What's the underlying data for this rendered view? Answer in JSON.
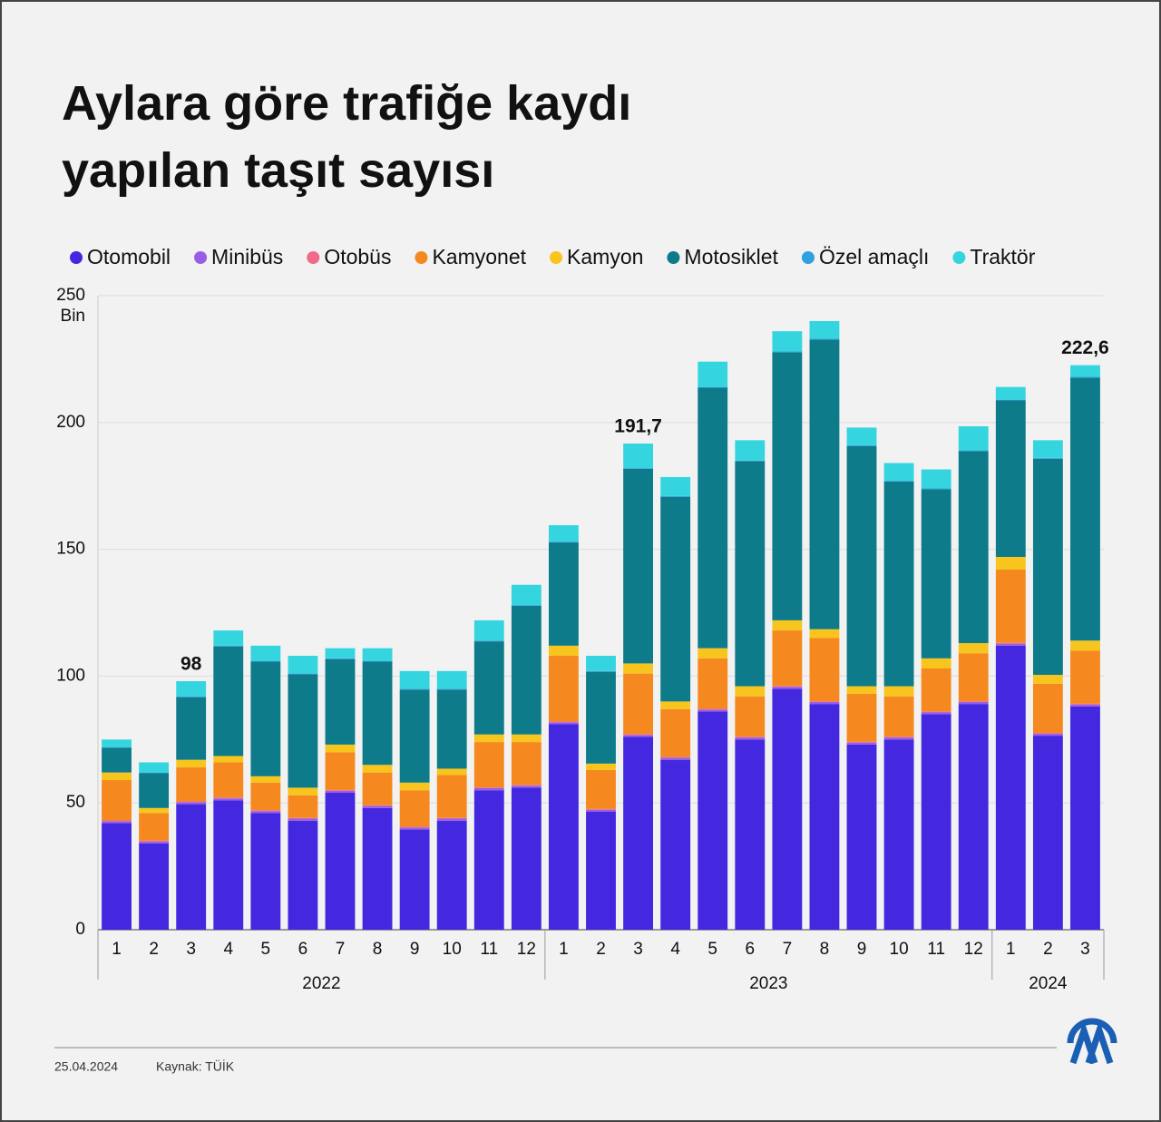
{
  "chart_data": {
    "type": "stacked_bar",
    "title_lines": [
      "Aylara göre trafiğe kaydı",
      "yapılan taşıt sayısı"
    ],
    "y_unit": "Bin",
    "groups": [
      {
        "label": "2022",
        "categories": [
          "1",
          "2",
          "3",
          "4",
          "5",
          "6",
          "7",
          "8",
          "9",
          "10",
          "11",
          "12"
        ]
      },
      {
        "label": "2023",
        "categories": [
          "1",
          "2",
          "3",
          "4",
          "5",
          "6",
          "7",
          "8",
          "9",
          "10",
          "11",
          "12"
        ]
      },
      {
        "label": "2024",
        "categories": [
          "1",
          "2",
          "3"
        ]
      }
    ],
    "series": [
      {
        "name": "Otomobil",
        "color": "#4328e0",
        "values": [
          42,
          34,
          49.5,
          51,
          46,
          43,
          54,
          48,
          39.5,
          43,
          55,
          56,
          81,
          46.5,
          76,
          67,
          86,
          75,
          95,
          89,
          73,
          75,
          85,
          89,
          112,
          76.5,
          88
        ]
      },
      {
        "name": "Minibüs",
        "color": "#9b5de5",
        "values": [
          0.8,
          0.8,
          0.8,
          0.8,
          0.8,
          0.8,
          0.8,
          0.8,
          0.8,
          0.8,
          0.8,
          0.8,
          0.8,
          0.8,
          0.8,
          0.8,
          0.8,
          0.8,
          0.8,
          0.8,
          0.8,
          0.8,
          0.8,
          0.8,
          0.8,
          0.8,
          0.8
        ]
      },
      {
        "name": "Otobüs",
        "color": "#f06a8a",
        "values": [
          0.3,
          0.3,
          0.3,
          0.3,
          0.3,
          0.3,
          0.3,
          0.3,
          0.3,
          0.3,
          0.3,
          0.3,
          0.3,
          0.3,
          0.3,
          0.3,
          0.3,
          0.3,
          0.3,
          0.3,
          0.3,
          0.3,
          0.3,
          0.3,
          0.3,
          0.3,
          0.3
        ]
      },
      {
        "name": "Kamyonet",
        "color": "#f5891f",
        "values": [
          15.9,
          10.9,
          13.4,
          13.9,
          10.9,
          8.9,
          14.9,
          12.9,
          14.4,
          16.9,
          17.9,
          16.9,
          25.9,
          15.4,
          23.9,
          18.9,
          19.9,
          15.9,
          21.9,
          24.9,
          18.9,
          15.9,
          16.9,
          18.9,
          28.9,
          19.4,
          20.9
        ]
      },
      {
        "name": "Kamyon",
        "color": "#f7c51e",
        "values": [
          3,
          2,
          3,
          2.5,
          2.5,
          3,
          3,
          3,
          3,
          2.5,
          3,
          3,
          4,
          2.5,
          4,
          3,
          4,
          4,
          4,
          3.5,
          3,
          4,
          4,
          4,
          5,
          3.5,
          4
        ]
      },
      {
        "name": "Motosiklet",
        "color": "#0e7b8a",
        "values": [
          9.7,
          13.7,
          24.7,
          43.2,
          45.2,
          44.7,
          33.7,
          40.7,
          36.7,
          31.2,
          36.7,
          50.7,
          40.7,
          36.2,
          76.7,
          80.7,
          102.7,
          88.7,
          105.7,
          114.2,
          94.7,
          80.7,
          66.7,
          75.7,
          61.7,
          85.2,
          103.7
        ]
      },
      {
        "name": "Özel amaçlı",
        "color": "#2fa0e0",
        "values": [
          0.3,
          0.3,
          0.3,
          0.3,
          0.3,
          0.3,
          0.3,
          0.3,
          0.3,
          0.3,
          0.3,
          0.3,
          0.3,
          0.3,
          0.3,
          0.3,
          0.3,
          0.3,
          0.3,
          0.3,
          0.3,
          0.3,
          0.3,
          0.3,
          0.3,
          0.3,
          0.3
        ]
      },
      {
        "name": "Traktör",
        "color": "#35d5e0",
        "values": [
          3,
          4,
          6,
          6,
          6,
          7,
          4,
          5,
          7,
          7,
          8,
          8,
          6.5,
          6,
          9.7,
          7.5,
          10,
          8,
          8,
          7,
          7,
          7,
          7.5,
          9.5,
          5,
          7,
          4.6
        ]
      }
    ],
    "annotations": [
      {
        "year": "2022",
        "month": "3",
        "text": "98"
      },
      {
        "year": "2023",
        "month": "3",
        "text": "191,7"
      },
      {
        "year": "2024",
        "month": "3",
        "text": "222,6"
      }
    ],
    "ylim": [
      0,
      250
    ],
    "yticks": [
      0,
      50,
      100,
      150,
      200,
      250
    ],
    "grid": true
  },
  "footer": {
    "date": "25.04.2024",
    "source": "Kaynak: TÜİK"
  }
}
